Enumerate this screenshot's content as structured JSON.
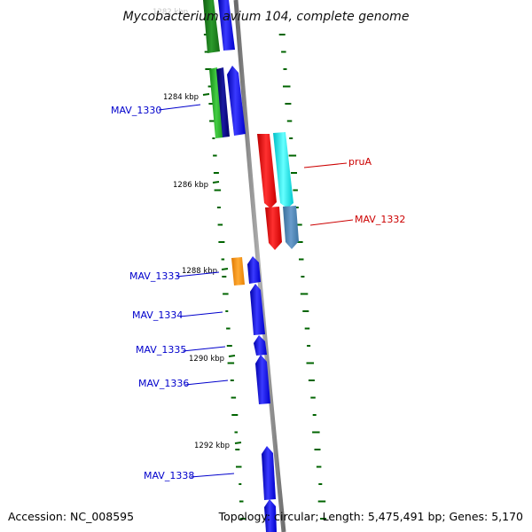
{
  "title": "Mycobacterium avium 104, complete genome",
  "footer": {
    "accession": "Accession: NC_008595",
    "summary": "Topology: circular; Length: 5,475,491 bp; Genes: 5,170"
  },
  "ticks": [
    "1284 kbp",
    "1286 kbp",
    "1288 kbp",
    "1290 kbp",
    "1292 kbp"
  ],
  "labels": {
    "mav_1330": "MAV_1330",
    "pruA": "pruA",
    "mav_1332": "MAV_1332",
    "mav_1333": "MAV_1333",
    "mav_1334": "MAV_1334",
    "mav_1335": "MAV_1335",
    "mav_1336": "MAV_1336",
    "mav_1338": "MAV_1338"
  },
  "colors": {
    "backbone": "#888888",
    "gene_blue": "#0000ee",
    "gene_darkblue": "#000080",
    "gene_green": "#22aa22",
    "gene_darkgreen": "#1a7a1a",
    "gene_red": "#ee0000",
    "gene_cyan": "#00e5ee",
    "gene_steelblue": "#4682b4",
    "gene_orange": "#ff8c00",
    "gc_dots": "#006400"
  }
}
